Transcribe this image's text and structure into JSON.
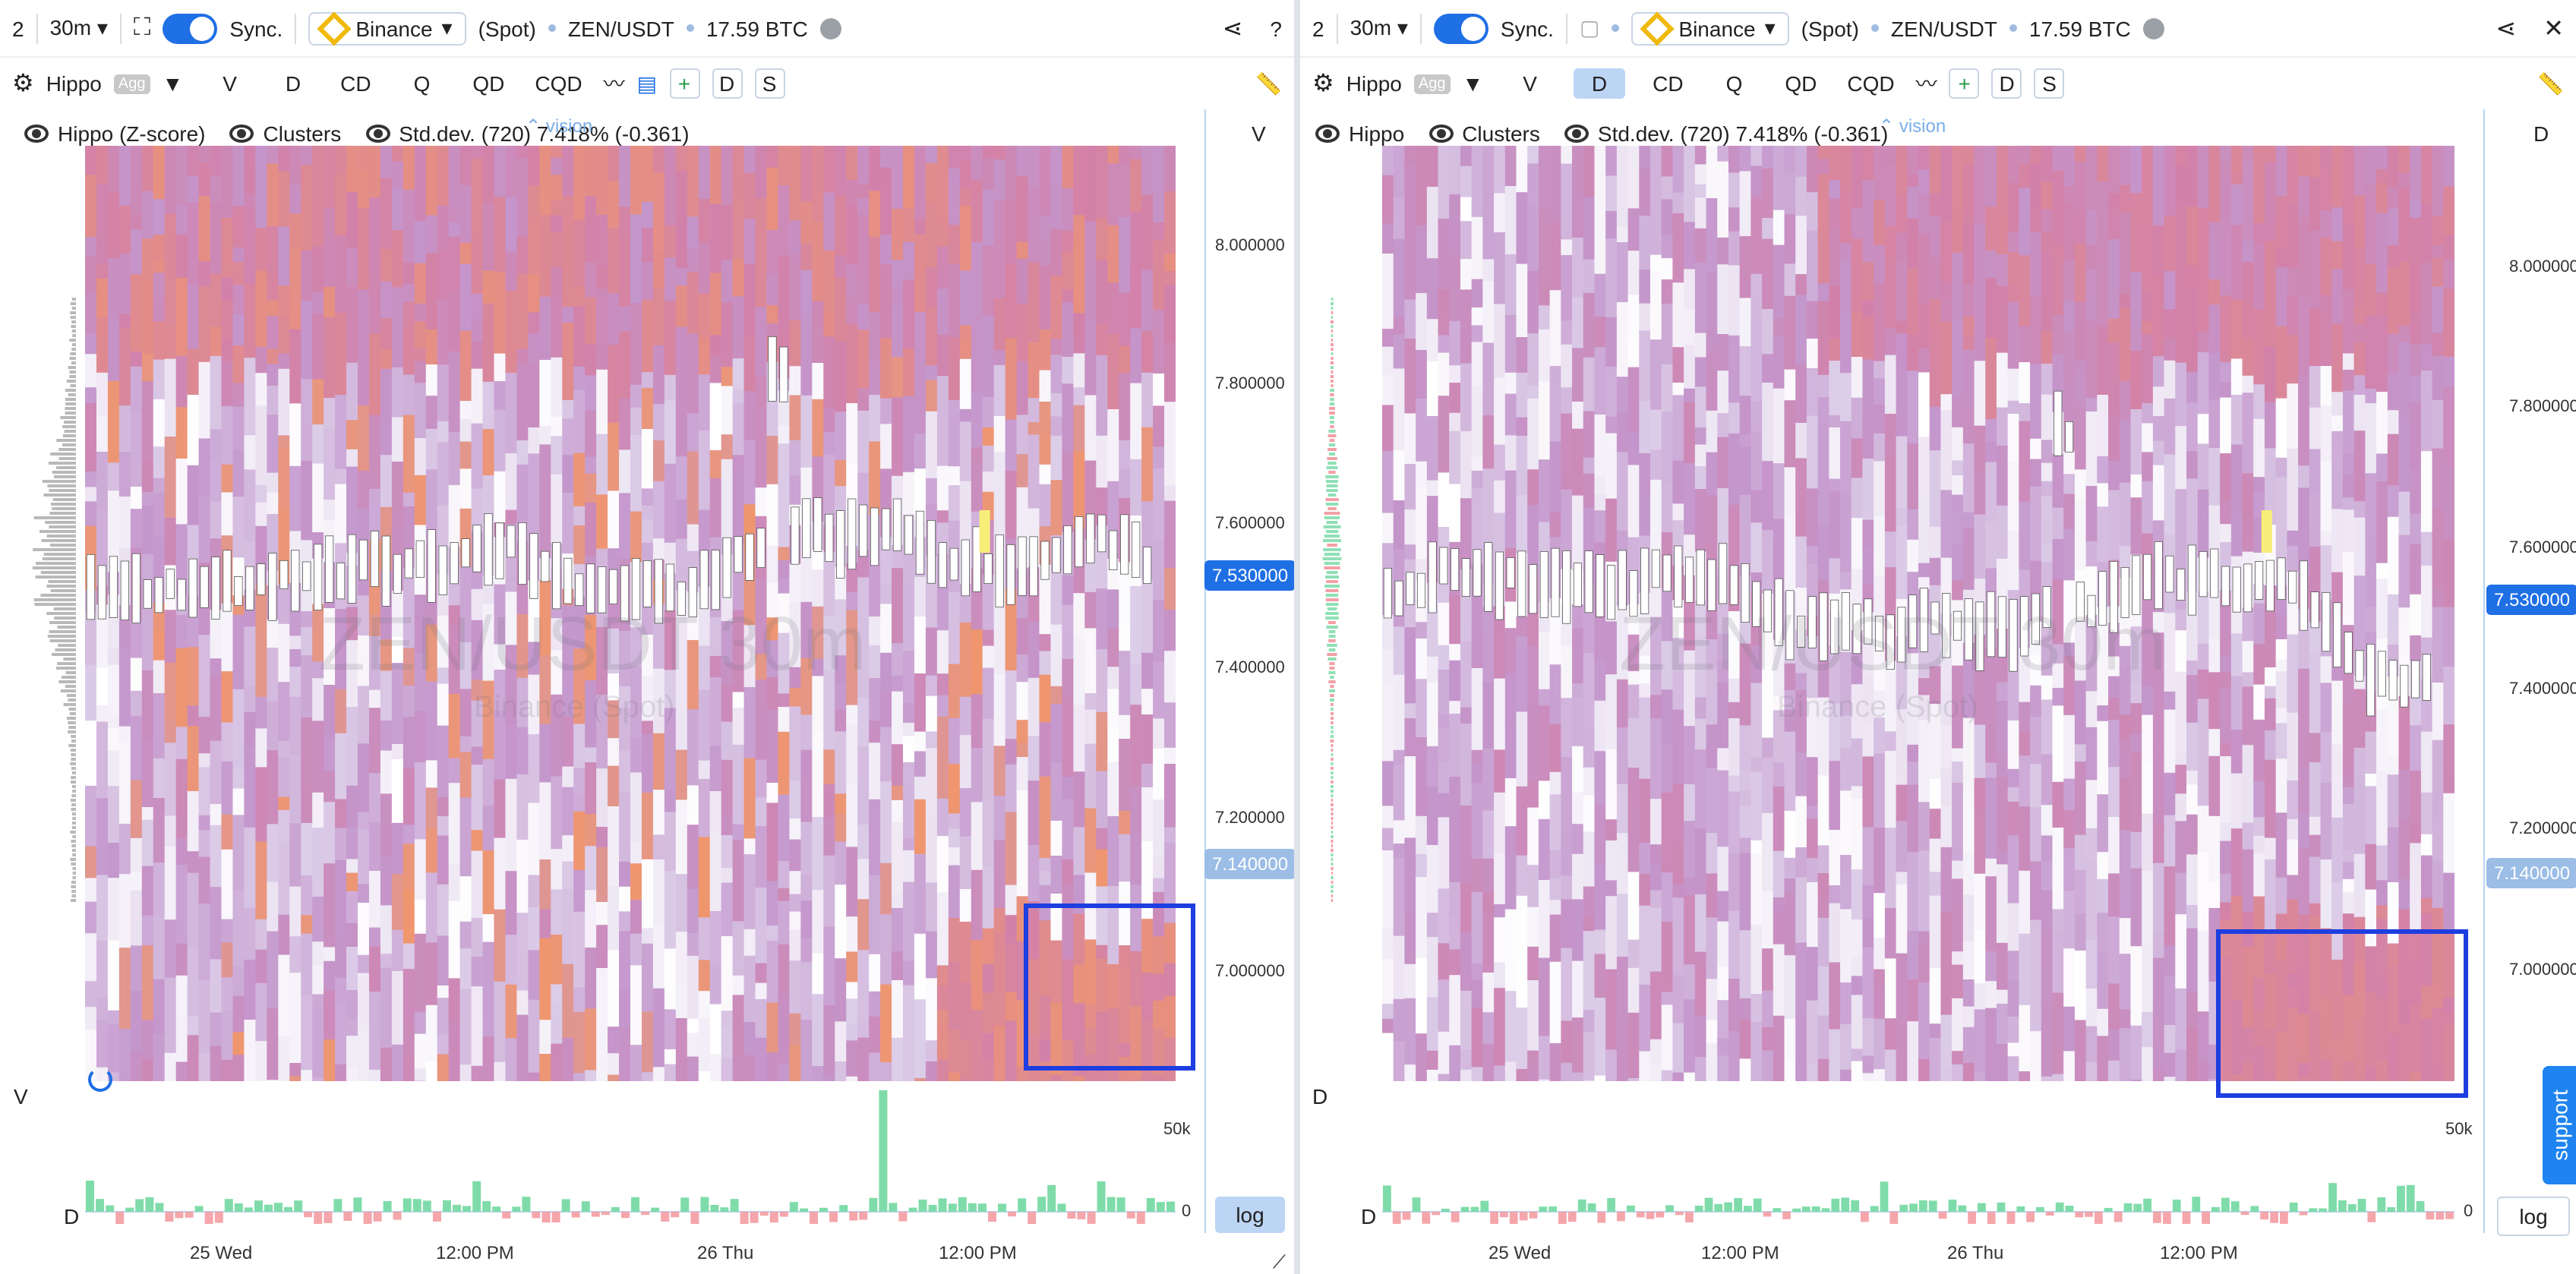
{
  "left": {
    "top_bar": {
      "layout_num": "2",
      "interval": "30m",
      "sync_label": "Sync.",
      "exchange": "Binance",
      "market": "(Spot)",
      "pair": "ZEN/USDT",
      "volume": "17.59 BTC",
      "help": "?"
    },
    "tool_bar": {
      "indicator": "Hippo",
      "agg": "Agg",
      "modes": [
        "V",
        "D",
        "CD",
        "Q",
        "QD",
        "CQD"
      ],
      "plus": "+",
      "d": "D",
      "s": "S"
    },
    "legend": {
      "a": "Hippo (Z-score)",
      "b": "Clusters",
      "c": "Std.dev. (720) 7.418% (-0.361)",
      "vision": "vision"
    },
    "axis_label": "V",
    "price_ticks": [
      "8.000000",
      "7.800000",
      "7.600000",
      "7.400000",
      "7.200000",
      "7.000000"
    ],
    "price_labels": {
      "high": "7.530000",
      "low": "7.140000"
    },
    "volume_ticks": {
      "top": "50k",
      "zero": "0"
    },
    "sub_labels": {
      "v": "V",
      "d": "D"
    },
    "log": "log",
    "times": [
      "25 Wed",
      "12:00 PM",
      "26 Thu",
      "12:00 PM"
    ],
    "watermark": {
      "pair": "ZEN/USDT 30m",
      "exchange": "Binance (Spot)"
    }
  },
  "right": {
    "top_bar": {
      "layout_num": "2",
      "interval": "30m",
      "sync_label": "Sync.",
      "exchange": "Binance",
      "market": "(Spot)",
      "pair": "ZEN/USDT",
      "volume": "17.59 BTC"
    },
    "tool_bar": {
      "indicator": "Hippo",
      "agg": "Agg",
      "modes": [
        "V",
        "D",
        "CD",
        "Q",
        "QD",
        "CQD"
      ],
      "plus": "+",
      "d": "D",
      "s": "S",
      "active_mode": "D"
    },
    "legend": {
      "a": "Hippo",
      "b": "Clusters",
      "c": "Std.dev. (720) 7.418% (-0.361)",
      "vision": "vision"
    },
    "axis_label": "D",
    "price_ticks": [
      "8.000000",
      "7.800000",
      "7.600000",
      "7.400000",
      "7.200000",
      "7.000000"
    ],
    "price_labels": {
      "high": "7.530000",
      "low": "7.140000"
    },
    "volume_ticks": {
      "top": "50k",
      "zero": "0"
    },
    "sub_labels": {
      "d": "D"
    },
    "log": "log",
    "support": "support",
    "times": [
      "25 Wed",
      "12:00 PM",
      "26 Thu",
      "12:00 PM"
    ],
    "watermark": {
      "pair": "ZEN/USDT 30m",
      "exchange": "Binance (Spot)"
    }
  },
  "colors": {
    "accent": "#1f6fe5",
    "price_tag_high": "#1f6fe5",
    "price_tag_low": "#9bbde6",
    "highlight_box": "#1d3ee0",
    "heat_hot": "#f2a073",
    "heat_cold": "#ffffff",
    "heat_mid": "#c79fd0",
    "buy_bar": "#7fdcaa",
    "sell_bar": "#f4a6ab"
  }
}
